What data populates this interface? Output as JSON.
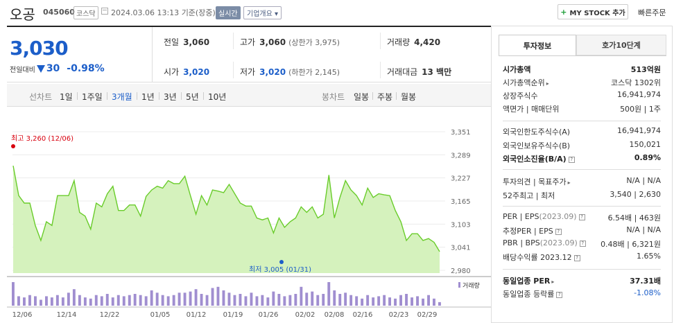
{
  "header": {
    "stock_name": "오공",
    "stock_code": "045060",
    "market": "코스닥",
    "datetime": "2024.03.06 13:13",
    "basis": "기준(장중)",
    "realtime_badge": "실시간",
    "company_overview": "기업개요",
    "mystock_label": "MY STOCK 추가",
    "quick_order": "빠른주문"
  },
  "quote": {
    "price": "3,030",
    "change_label": "전일대비",
    "change": "30",
    "change_pct": "-0.98%",
    "prev_close_label": "전일",
    "prev_close": "3,060",
    "high_label": "고가",
    "high": "3,060",
    "upper_limit": "(상한가 3,975)",
    "volume_label": "거래량",
    "volume": "4,420",
    "open_label": "시가",
    "open": "3,020",
    "low_label": "저가",
    "low": "3,020",
    "lower_limit": "(하한가 2,145)",
    "amount_label": "거래대금",
    "amount": "13 백만"
  },
  "periods": {
    "line_label": "선차트",
    "line_items": [
      "1일",
      "1주일",
      "3개월",
      "1년",
      "3년",
      "5년",
      "10년"
    ],
    "active": "3개월",
    "candle_label": "봉차트",
    "candle_items": [
      "일봉",
      "주봉",
      "월봉"
    ]
  },
  "chart_data": {
    "type": "area",
    "y_ticks": [
      "3,351",
      "3,289",
      "3,227",
      "3,165",
      "3,103",
      "3,041",
      "2,980"
    ],
    "ylim": [
      2980,
      3351
    ],
    "x_ticks": [
      "12/06",
      "12/14",
      "12/22",
      "01/05",
      "01/12",
      "01/19",
      "01/26",
      "02/02",
      "02/08",
      "02/16",
      "02/23",
      "02/29"
    ],
    "high_annotation": "최고 3,260 (12/06)",
    "low_annotation": "최저 3,005 (01/31)",
    "volume_label": "거래량",
    "series": [
      {
        "values": [
          3260,
          3180,
          3160,
          3160,
          3100,
          3060,
          3110,
          3100,
          3180,
          3180,
          3180,
          3220,
          3135,
          3125,
          3090,
          3160,
          3150,
          3185,
          3205,
          3140,
          3140,
          3155,
          3155,
          3125,
          3178,
          3195,
          3205,
          3200,
          3220,
          3212,
          3212,
          3232,
          3180,
          3130,
          3180,
          3155,
          3195,
          3192,
          3188,
          3210,
          3185,
          3160,
          3152,
          3152,
          3120,
          3115,
          3120,
          3080,
          3120,
          3095,
          3110,
          3120,
          3150,
          3135,
          3150,
          3120,
          3130,
          3235,
          3120,
          3175,
          3220,
          3195,
          3180,
          3155,
          3200,
          3175,
          3185,
          3182,
          3180,
          3140,
          3110,
          3060,
          3078,
          3078,
          3060,
          3065,
          3055,
          3030
        ]
      }
    ],
    "volume_values": [
      100,
      40,
      35,
      45,
      40,
      25,
      40,
      35,
      45,
      35,
      55,
      70,
      45,
      35,
      30,
      45,
      40,
      50,
      35,
      45,
      40,
      45,
      50,
      45,
      40,
      65,
      55,
      45,
      40,
      45,
      55,
      55,
      60,
      70,
      50,
      45,
      75,
      80,
      65,
      55,
      45,
      50,
      40,
      55,
      40,
      45,
      35,
      60,
      50,
      40,
      45,
      50,
      80,
      55,
      60,
      45,
      50,
      100,
      65,
      50,
      55,
      45,
      40,
      30,
      45,
      35,
      40,
      45,
      35,
      30,
      45,
      50,
      35,
      40,
      30,
      45,
      30,
      15
    ]
  },
  "panel": {
    "tab_selected": "투자정보",
    "tab_other": "호가10단계",
    "rows": {
      "market_cap_label": "시가총액",
      "market_cap": "513억원",
      "market_cap_rank_label": "시가총액순위",
      "market_cap_rank": "코스닥 1302위",
      "shares_label": "상장주식수",
      "shares": "16,941,974",
      "par_label": "액면가 | 매매단위",
      "par": "500원 | 1주",
      "foreign_limit_label": "외국인한도주식수(A)",
      "foreign_limit": "16,941,974",
      "foreign_hold_label": "외국인보유주식수(B)",
      "foreign_hold": "150,021",
      "foreign_ratio_label": "외국인소진율(B/A)",
      "foreign_ratio": "0.89%",
      "opinion_label": "투자의견 | 목표주가",
      "opinion": "N/A | N/A",
      "week52_label": "52주최고 | 최저",
      "week52": "3,540 | 2,630",
      "per_label": "PER | EPS",
      "per_date": "(2023.09)",
      "per": "6.54배 | 463원",
      "est_per_label": "추정PER | EPS",
      "est_per": "N/A | N/A",
      "pbr_label": "PBR | BPS",
      "pbr_date": "(2023.09)",
      "pbr": "0.48배 | 6,321원",
      "dividend_label": "배당수익률",
      "dividend_date": "2023.12",
      "dividend": "1.65%",
      "industry_per_label": "동일업종 PER",
      "industry_per": "37.31배",
      "industry_rate_label": "동일업종 등락률",
      "industry_rate": "-1.08%"
    }
  },
  "colors": {
    "up": "#d8000e",
    "down": "#1c5ec9",
    "chart_line": "#69cc2a",
    "chart_fill": "#d5f2bd",
    "volume": "#a08ed0"
  }
}
